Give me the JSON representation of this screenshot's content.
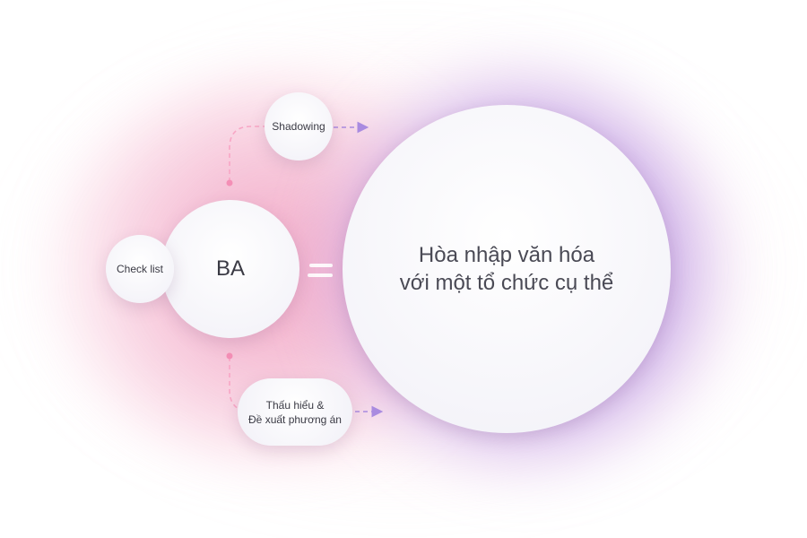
{
  "diagram": {
    "center": {
      "line1": "Hòa nhập văn hóa",
      "line2": "với một tổ chức cụ thể"
    },
    "ba": "BA",
    "checklist": "Check list",
    "shadowing": "Shadowing",
    "proposal": {
      "line1": "Thấu hiểu &",
      "line2": "Đề xuất phương án"
    },
    "equals_symbol": "="
  },
  "colors": {
    "pink": "#f48fb6",
    "purple": "#a98be0",
    "glow_pink": "#f3a6c6",
    "glow_purple": "#b9a0e6"
  }
}
